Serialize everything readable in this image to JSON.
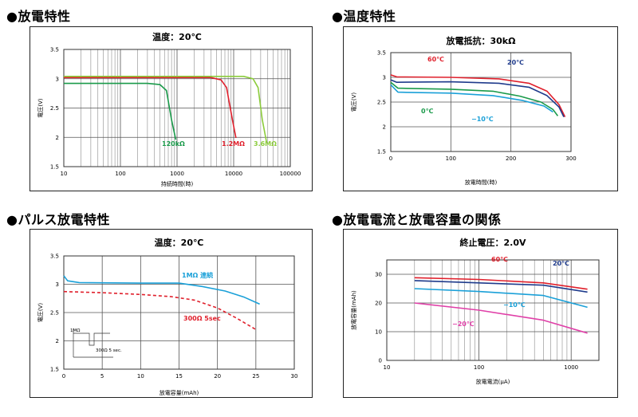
{
  "sections": {
    "discharge": "●放電特性",
    "temperature": "●温度特性",
    "pulse": "●パルス放電特性",
    "current_capacity": "●放電電流と放電容量の関係"
  },
  "chart_data": [
    {
      "type": "line",
      "title": "温度：20℃",
      "xlabel": "持続時間(時)",
      "ylabel": "電圧(V)",
      "xscale": "log",
      "xlim": [
        10,
        100000
      ],
      "ylim": [
        1.5,
        3.5
      ],
      "xticks": [
        10,
        100,
        1000,
        10000,
        100000
      ],
      "yticks": [
        1.5,
        2,
        2.5,
        3,
        3.5
      ],
      "series": [
        {
          "name": "120kΩ",
          "color": "#1a9a4a",
          "points": [
            [
              10,
              2.92
            ],
            [
              300,
              2.92
            ],
            [
              500,
              2.9
            ],
            [
              650,
              2.8
            ],
            [
              800,
              2.3
            ],
            [
              950,
              1.96
            ]
          ]
        },
        {
          "name": "1.2MΩ",
          "color": "#e0202c",
          "points": [
            [
              10,
              3.02
            ],
            [
              4000,
              3.02
            ],
            [
              6000,
              2.98
            ],
            [
              7500,
              2.85
            ],
            [
              9500,
              2.3
            ],
            [
              11000,
              1.99
            ]
          ]
        },
        {
          "name": "3.6MΩ",
          "color": "#8ccc3c",
          "points": [
            [
              10,
              3.04
            ],
            [
              15000,
              3.04
            ],
            [
              22000,
              3.0
            ],
            [
              27000,
              2.85
            ],
            [
              32000,
              2.3
            ],
            [
              38000,
              1.92
            ]
          ]
        }
      ]
    },
    {
      "type": "line",
      "title": "放電抵抗：30kΩ",
      "xlabel": "放電時間(時)",
      "ylabel": "電圧(V)",
      "xlim": [
        0,
        300
      ],
      "ylim": [
        1.5,
        3.5
      ],
      "xticks": [
        0,
        100,
        200,
        300
      ],
      "yticks": [
        1.5,
        2,
        2.5,
        3,
        3.5
      ],
      "series": [
        {
          "name": "60℃",
          "color": "#e0202c",
          "points": [
            [
              0,
              3.05
            ],
            [
              10,
              3.01
            ],
            [
              100,
              3.0
            ],
            [
              180,
              2.97
            ],
            [
              230,
              2.88
            ],
            [
              260,
              2.72
            ],
            [
              280,
              2.45
            ],
            [
              290,
              2.2
            ]
          ]
        },
        {
          "name": "20℃",
          "color": "#1f3b8c",
          "points": [
            [
              0,
              2.95
            ],
            [
              10,
              2.9
            ],
            [
              100,
              2.91
            ],
            [
              180,
              2.88
            ],
            [
              230,
              2.8
            ],
            [
              260,
              2.63
            ],
            [
              280,
              2.4
            ],
            [
              288,
              2.2
            ]
          ]
        },
        {
          "name": "0℃",
          "color": "#1a9a4a",
          "points": [
            [
              0,
              2.9
            ],
            [
              12,
              2.78
            ],
            [
              100,
              2.76
            ],
            [
              170,
              2.72
            ],
            [
              215,
              2.62
            ],
            [
              250,
              2.5
            ],
            [
              270,
              2.35
            ],
            [
              278,
              2.22
            ]
          ]
        },
        {
          "name": "−10℃",
          "color": "#1aa0d8",
          "points": [
            [
              0,
              2.85
            ],
            [
              12,
              2.7
            ],
            [
              100,
              2.68
            ],
            [
              170,
              2.63
            ],
            [
              220,
              2.53
            ],
            [
              255,
              2.42
            ],
            [
              270,
              2.3
            ]
          ]
        }
      ]
    },
    {
      "type": "line",
      "title": "温度：20℃",
      "xlabel": "放電容量(mAh)",
      "ylabel": "電圧(V)",
      "xlim": [
        0,
        30
      ],
      "ylim": [
        1.5,
        3.5
      ],
      "xticks": [
        0,
        5,
        10,
        15,
        20,
        25,
        30
      ],
      "yticks": [
        1.5,
        2,
        2.5,
        3,
        3.5
      ],
      "inset_labels": [
        "1MΩ",
        "300Ω 5 sec."
      ],
      "series": [
        {
          "name": "1MΩ 連続",
          "color": "#1aa0d8",
          "style": "solid",
          "points": [
            [
              0,
              3.15
            ],
            [
              0.5,
              3.06
            ],
            [
              2,
              3.03
            ],
            [
              10,
              3.02
            ],
            [
              15,
              3.02
            ],
            [
              18,
              2.96
            ],
            [
              21,
              2.88
            ],
            [
              23.5,
              2.77
            ],
            [
              25.5,
              2.65
            ]
          ]
        },
        {
          "name": "300Ω 5sec",
          "color": "#e0202c",
          "style": "dashed",
          "points": [
            [
              0,
              2.87
            ],
            [
              5,
              2.85
            ],
            [
              10,
              2.82
            ],
            [
              14,
              2.78
            ],
            [
              17,
              2.72
            ],
            [
              20,
              2.58
            ],
            [
              22.5,
              2.4
            ],
            [
              25,
              2.2
            ]
          ]
        }
      ]
    },
    {
      "type": "line",
      "title": "終止電圧：2.0V",
      "xlabel": "放電電流(μA)",
      "ylabel": "放電容量(mAh)",
      "xscale": "log",
      "xlim": [
        10,
        2000
      ],
      "ylim": [
        0,
        35
      ],
      "xticks": [
        10,
        100,
        1000
      ],
      "yticks": [
        0,
        10,
        20,
        30
      ],
      "series": [
        {
          "name": "60℃",
          "color": "#e0202c",
          "points": [
            [
              20,
              28.8
            ],
            [
              100,
              28.2
            ],
            [
              500,
              27.0
            ],
            [
              1500,
              24.8
            ]
          ]
        },
        {
          "name": "20℃",
          "color": "#1f3b8c",
          "points": [
            [
              20,
              27.8
            ],
            [
              100,
              27.0
            ],
            [
              500,
              26.2
            ],
            [
              1500,
              23.8
            ]
          ]
        },
        {
          "name": "−10℃",
          "color": "#1aa0d8",
          "points": [
            [
              20,
              25.0
            ],
            [
              100,
              24.0
            ],
            [
              500,
              22.6
            ],
            [
              1500,
              18.5
            ]
          ]
        },
        {
          "name": "−20℃",
          "color": "#e040a8",
          "points": [
            [
              20,
              20.0
            ],
            [
              100,
              17.5
            ],
            [
              500,
              14.0
            ],
            [
              1500,
              9.5
            ]
          ]
        }
      ]
    }
  ]
}
